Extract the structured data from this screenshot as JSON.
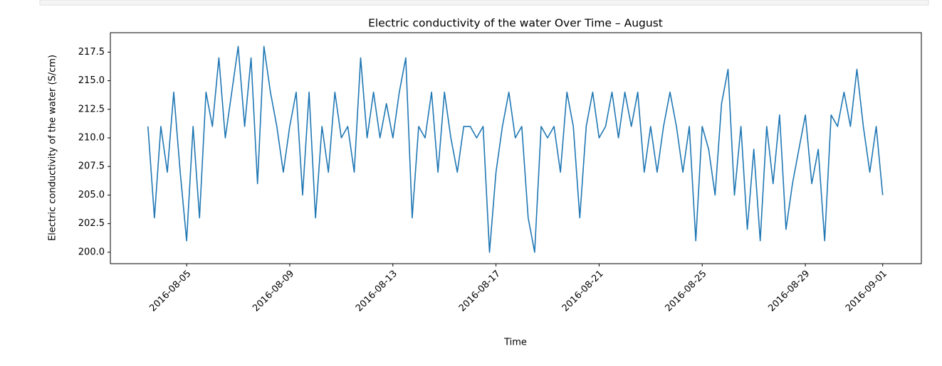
{
  "chart_data": {
    "type": "line",
    "title": "Electric conductivity of the water Over Time – August",
    "xlabel": "Time",
    "ylabel": "Electric conductivity of the water (S/cm)",
    "color": "#1f77b4",
    "x": [
      "2016-08-03T12:00",
      "2016-08-03T18:00",
      "2016-08-04T00:00",
      "2016-08-04T06:00",
      "2016-08-04T12:00",
      "2016-08-04T18:00",
      "2016-08-05T00:00",
      "2016-08-05T06:00",
      "2016-08-05T12:00",
      "2016-08-05T18:00",
      "2016-08-06T00:00",
      "2016-08-06T06:00",
      "2016-08-06T12:00",
      "2016-08-06T18:00",
      "2016-08-07T00:00",
      "2016-08-07T06:00",
      "2016-08-07T12:00",
      "2016-08-07T18:00",
      "2016-08-08T00:00",
      "2016-08-08T06:00",
      "2016-08-08T12:00",
      "2016-08-08T18:00",
      "2016-08-09T00:00",
      "2016-08-09T06:00",
      "2016-08-09T12:00",
      "2016-08-09T18:00",
      "2016-08-10T00:00",
      "2016-08-10T06:00",
      "2016-08-10T12:00",
      "2016-08-10T18:00",
      "2016-08-11T00:00",
      "2016-08-11T06:00",
      "2016-08-11T12:00",
      "2016-08-11T18:00",
      "2016-08-12T00:00",
      "2016-08-12T06:00",
      "2016-08-12T12:00",
      "2016-08-12T18:00",
      "2016-08-13T00:00",
      "2016-08-13T06:00",
      "2016-08-13T12:00",
      "2016-08-13T18:00",
      "2016-08-14T00:00",
      "2016-08-14T06:00",
      "2016-08-14T12:00",
      "2016-08-14T18:00",
      "2016-08-15T00:00",
      "2016-08-15T06:00",
      "2016-08-15T12:00",
      "2016-08-15T18:00",
      "2016-08-16T00:00",
      "2016-08-16T06:00",
      "2016-08-16T12:00",
      "2016-08-16T18:00",
      "2016-08-17T00:00",
      "2016-08-17T06:00",
      "2016-08-17T12:00",
      "2016-08-17T18:00",
      "2016-08-18T00:00",
      "2016-08-18T06:00",
      "2016-08-18T12:00",
      "2016-08-18T18:00",
      "2016-08-19T00:00",
      "2016-08-19T06:00",
      "2016-08-19T12:00",
      "2016-08-19T18:00",
      "2016-08-20T00:00",
      "2016-08-20T06:00",
      "2016-08-20T12:00",
      "2016-08-20T18:00",
      "2016-08-21T00:00",
      "2016-08-21T06:00",
      "2016-08-21T12:00",
      "2016-08-21T18:00",
      "2016-08-22T00:00",
      "2016-08-22T06:00",
      "2016-08-22T12:00",
      "2016-08-22T18:00",
      "2016-08-23T00:00",
      "2016-08-23T06:00",
      "2016-08-23T12:00",
      "2016-08-23T18:00",
      "2016-08-24T00:00",
      "2016-08-24T06:00",
      "2016-08-24T12:00",
      "2016-08-24T18:00",
      "2016-08-25T00:00",
      "2016-08-25T06:00",
      "2016-08-25T12:00",
      "2016-08-25T18:00",
      "2016-08-26T00:00",
      "2016-08-26T06:00",
      "2016-08-26T12:00",
      "2016-08-26T18:00",
      "2016-08-27T00:00",
      "2016-08-27T06:00",
      "2016-08-27T12:00",
      "2016-08-27T18:00",
      "2016-08-28T00:00",
      "2016-08-28T06:00",
      "2016-08-28T12:00",
      "2016-08-28T18:00",
      "2016-08-29T00:00",
      "2016-08-29T06:00",
      "2016-08-29T12:00",
      "2016-08-29T18:00",
      "2016-08-30T00:00",
      "2016-08-30T06:00",
      "2016-08-30T12:00",
      "2016-08-30T18:00",
      "2016-08-31T00:00",
      "2016-08-31T06:00",
      "2016-08-31T12:00",
      "2016-08-31T18:00",
      "2016-09-01T00:00"
    ],
    "values": [
      211,
      203,
      211,
      207,
      214,
      207,
      201,
      211,
      203,
      214,
      211,
      217,
      210,
      214,
      218,
      211,
      217,
      206,
      218,
      214,
      211,
      207,
      211,
      214,
      205,
      214,
      203,
      211,
      207,
      214,
      210,
      211,
      207,
      217,
      210,
      214,
      210,
      213,
      210,
      214,
      217,
      203,
      211,
      210,
      214,
      207,
      214,
      210,
      207,
      211,
      211,
      210,
      211,
      200,
      207,
      211,
      214,
      210,
      211,
      203,
      200,
      211,
      210,
      211,
      207,
      214,
      211,
      203,
      211,
      214,
      210,
      211,
      214,
      210,
      214,
      211,
      214,
      207,
      211,
      207,
      211,
      214,
      211,
      207,
      211,
      201,
      211,
      209,
      205,
      213,
      216,
      205,
      211,
      202,
      209,
      201,
      211,
      206,
      212,
      202,
      206,
      209,
      212,
      206,
      209,
      201,
      212,
      211,
      214,
      211,
      216,
      211,
      207,
      211,
      205
    ],
    "xlim": [
      "2016-08-02T01:00",
      "2016-09-02T12:00"
    ],
    "xticks": [
      "2016-08-05",
      "2016-08-09",
      "2016-08-13",
      "2016-08-17",
      "2016-08-21",
      "2016-08-25",
      "2016-08-29",
      "2016-09-01"
    ],
    "ylim": [
      199,
      219.2
    ],
    "yticks": [
      {
        "value": 200,
        "label": "200.0"
      },
      {
        "value": 202.5,
        "label": "202.5"
      },
      {
        "value": 205,
        "label": "205.0"
      },
      {
        "value": 207.5,
        "label": "207.5"
      },
      {
        "value": 210,
        "label": "210.0"
      },
      {
        "value": 212.5,
        "label": "212.5"
      },
      {
        "value": 215,
        "label": "215.0"
      },
      {
        "value": 217.5,
        "label": "217.5"
      }
    ],
    "grid": false
  }
}
